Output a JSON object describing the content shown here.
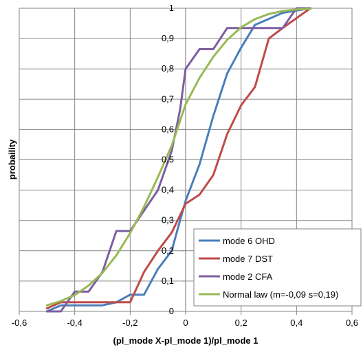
{
  "chart_data": {
    "type": "line",
    "title": "",
    "xlabel": "(pl_mode X-pl_mode 1)/pl_mode 1",
    "ylabel": "probaility",
    "xlim": [
      -0.6,
      0.6
    ],
    "ylim": [
      0,
      1
    ],
    "x_ticks": [
      -0.6,
      -0.4,
      -0.2,
      0,
      0.2,
      0.4,
      0.6
    ],
    "x_tick_labels": [
      "-0,6",
      "-0,4",
      "-0,2",
      "0",
      "0,2",
      "0,4",
      "0,6"
    ],
    "y_ticks": [
      0,
      0.1,
      0.2,
      0.3,
      0.4,
      0.5,
      0.6,
      0.7,
      0.8,
      0.9,
      1
    ],
    "y_tick_labels": [
      "0",
      "0,1",
      "0,2",
      "0,3",
      "0,4",
      "0,5",
      "0,6",
      "0,7",
      "0,8",
      "0,9",
      "1"
    ],
    "grid": true,
    "legend_position": "bottom-right",
    "series": [
      {
        "name": "mode 6 OHD",
        "color": "#4a7ebb",
        "points": [
          [
            -0.5,
            0.0
          ],
          [
            -0.45,
            0.02
          ],
          [
            -0.3,
            0.02
          ],
          [
            -0.25,
            0.03
          ],
          [
            -0.2,
            0.055
          ],
          [
            -0.15,
            0.055
          ],
          [
            -0.1,
            0.14
          ],
          [
            -0.05,
            0.2
          ],
          [
            -0.02,
            0.3
          ],
          [
            0.0,
            0.365
          ],
          [
            0.05,
            0.485
          ],
          [
            0.1,
            0.645
          ],
          [
            0.15,
            0.785
          ],
          [
            0.2,
            0.87
          ],
          [
            0.25,
            0.945
          ],
          [
            0.35,
            0.985
          ],
          [
            0.45,
            1.0
          ]
        ]
      },
      {
        "name": "mode 7 DST",
        "color": "#be4b48",
        "points": [
          [
            -0.5,
            0.01
          ],
          [
            -0.45,
            0.03
          ],
          [
            -0.4,
            0.03
          ],
          [
            -0.2,
            0.03
          ],
          [
            -0.15,
            0.13
          ],
          [
            -0.1,
            0.2
          ],
          [
            -0.05,
            0.26
          ],
          [
            0.0,
            0.355
          ],
          [
            0.05,
            0.385
          ],
          [
            0.1,
            0.45
          ],
          [
            0.15,
            0.585
          ],
          [
            0.2,
            0.68
          ],
          [
            0.25,
            0.74
          ],
          [
            0.3,
            0.9
          ],
          [
            0.35,
            0.935
          ],
          [
            0.45,
            1.0
          ]
        ]
      },
      {
        "name": "mode 2 CFA",
        "color": "#7d5fa0",
        "points": [
          [
            -0.5,
            0.0
          ],
          [
            -0.45,
            0.0
          ],
          [
            -0.4,
            0.065
          ],
          [
            -0.35,
            0.065
          ],
          [
            -0.3,
            0.13
          ],
          [
            -0.25,
            0.265
          ],
          [
            -0.2,
            0.265
          ],
          [
            -0.1,
            0.4
          ],
          [
            -0.05,
            0.53
          ],
          [
            -0.02,
            0.665
          ],
          [
            0.0,
            0.8
          ],
          [
            0.05,
            0.865
          ],
          [
            0.1,
            0.865
          ],
          [
            0.15,
            0.935
          ],
          [
            0.35,
            0.935
          ],
          [
            0.4,
            1.0
          ],
          [
            0.45,
            1.0
          ]
        ]
      },
      {
        "name": "Normal law (m=-0,09 s=0,19)",
        "color": "#98b954",
        "points": [
          [
            -0.5,
            0.02
          ],
          [
            -0.45,
            0.034
          ],
          [
            -0.4,
            0.054
          ],
          [
            -0.35,
            0.085
          ],
          [
            -0.3,
            0.127
          ],
          [
            -0.25,
            0.185
          ],
          [
            -0.2,
            0.258
          ],
          [
            -0.15,
            0.345
          ],
          [
            -0.1,
            0.443
          ],
          [
            -0.05,
            0.547
          ],
          [
            0.0,
            0.683
          ],
          [
            0.05,
            0.77
          ],
          [
            0.1,
            0.84
          ],
          [
            0.15,
            0.896
          ],
          [
            0.2,
            0.937
          ],
          [
            0.25,
            0.964
          ],
          [
            0.3,
            0.981
          ],
          [
            0.35,
            0.991
          ],
          [
            0.4,
            0.996
          ],
          [
            0.45,
            0.998
          ]
        ]
      }
    ]
  }
}
